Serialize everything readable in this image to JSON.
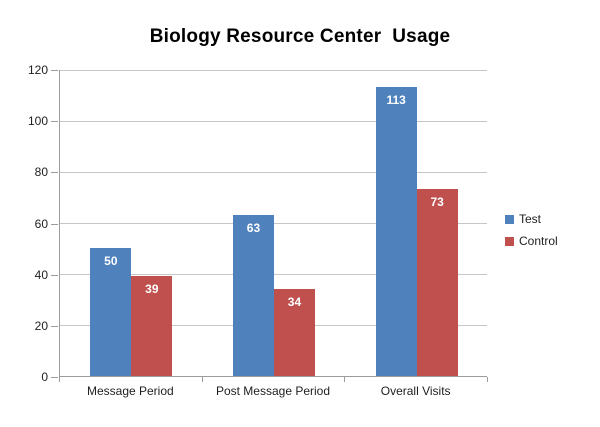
{
  "chart_data": {
    "type": "bar",
    "title": "Biology Resource Center  Usage",
    "categories": [
      "Message Period",
      "Post Message Period",
      "Overall Visits"
    ],
    "series": [
      {
        "name": "Test",
        "color": "#4F81BD",
        "values": [
          50,
          63,
          113
        ]
      },
      {
        "name": "Control",
        "color": "#C0504D",
        "values": [
          39,
          34,
          73
        ]
      }
    ],
    "ylim": [
      0,
      120
    ],
    "yticks": [
      0,
      20,
      40,
      60,
      80,
      100,
      120
    ],
    "grid": "horizontal",
    "legend_position": "right",
    "data_labels": "inside-end",
    "xlabel": "",
    "ylabel": ""
  },
  "style": {
    "background": "#FFFFFF",
    "axis_color": "#9C9C9C",
    "gridline_color": "#C6C6C6",
    "tick_label_color": "#1F1F1F",
    "data_label_color": "#FFFFFF",
    "title_color": "#000000"
  }
}
